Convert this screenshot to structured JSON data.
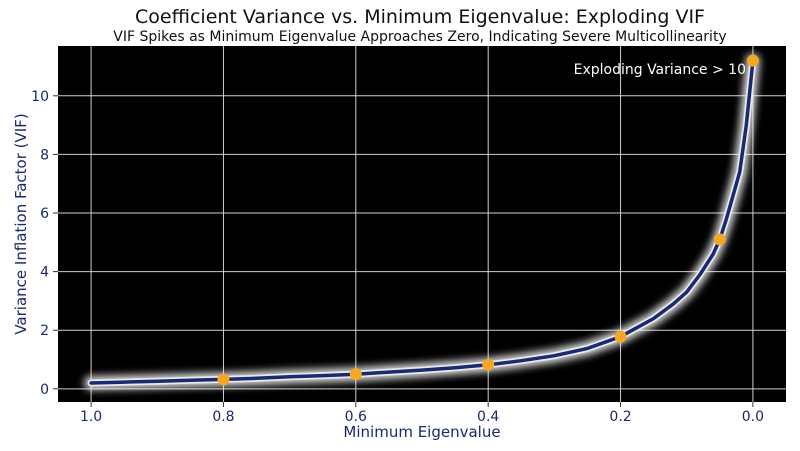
{
  "chart_data": {
    "type": "line",
    "title": "Coefficient Variance vs. Minimum Eigenvalue: Exploding VIF",
    "subtitle": "VIF Spikes as Minimum Eigenvalue Approaches Zero, Indicating Severe Multicollinearity",
    "xlabel": "Minimum Eigenvalue",
    "ylabel": "Variance Inflation Factor (VIF)",
    "xlim": [
      1.05,
      -0.05
    ],
    "ylim": [
      -0.45,
      11.7
    ],
    "x_reversed": true,
    "x_ticks": [
      1.0,
      0.8,
      0.6,
      0.4,
      0.2,
      0.0
    ],
    "x_tick_labels": [
      "1.0",
      "0.8",
      "0.6",
      "0.4",
      "0.2",
      "0.0"
    ],
    "y_ticks": [
      0,
      2,
      4,
      6,
      8,
      10
    ],
    "y_tick_labels": [
      "0",
      "2",
      "4",
      "6",
      "8",
      "10"
    ],
    "grid": true,
    "background": "#000000",
    "line_color": "#1a2a6c",
    "marker_color": "#f5a623",
    "annotation": "Exploding Variance > 10",
    "series": [
      {
        "x": [
          1.0,
          0.95,
          0.9,
          0.85,
          0.8,
          0.75,
          0.7,
          0.65,
          0.6,
          0.55,
          0.5,
          0.45,
          0.4,
          0.35,
          0.3,
          0.25,
          0.2,
          0.15,
          0.12,
          0.1,
          0.08,
          0.06,
          0.05,
          0.04,
          0.03,
          0.02,
          0.01,
          0.0
        ],
        "values": [
          0.2,
          0.23,
          0.26,
          0.29,
          0.32,
          0.36,
          0.41,
          0.45,
          0.5,
          0.57,
          0.64,
          0.72,
          0.82,
          0.96,
          1.13,
          1.38,
          1.78,
          2.4,
          2.9,
          3.3,
          3.9,
          4.6,
          5.1,
          5.8,
          6.6,
          7.4,
          9.0,
          11.2
        ]
      }
    ],
    "highlighted_points": {
      "x": [
        0.8,
        0.6,
        0.4,
        0.2,
        0.05,
        0.0
      ],
      "values": [
        0.32,
        0.5,
        0.82,
        1.78,
        5.1,
        11.2
      ]
    }
  }
}
